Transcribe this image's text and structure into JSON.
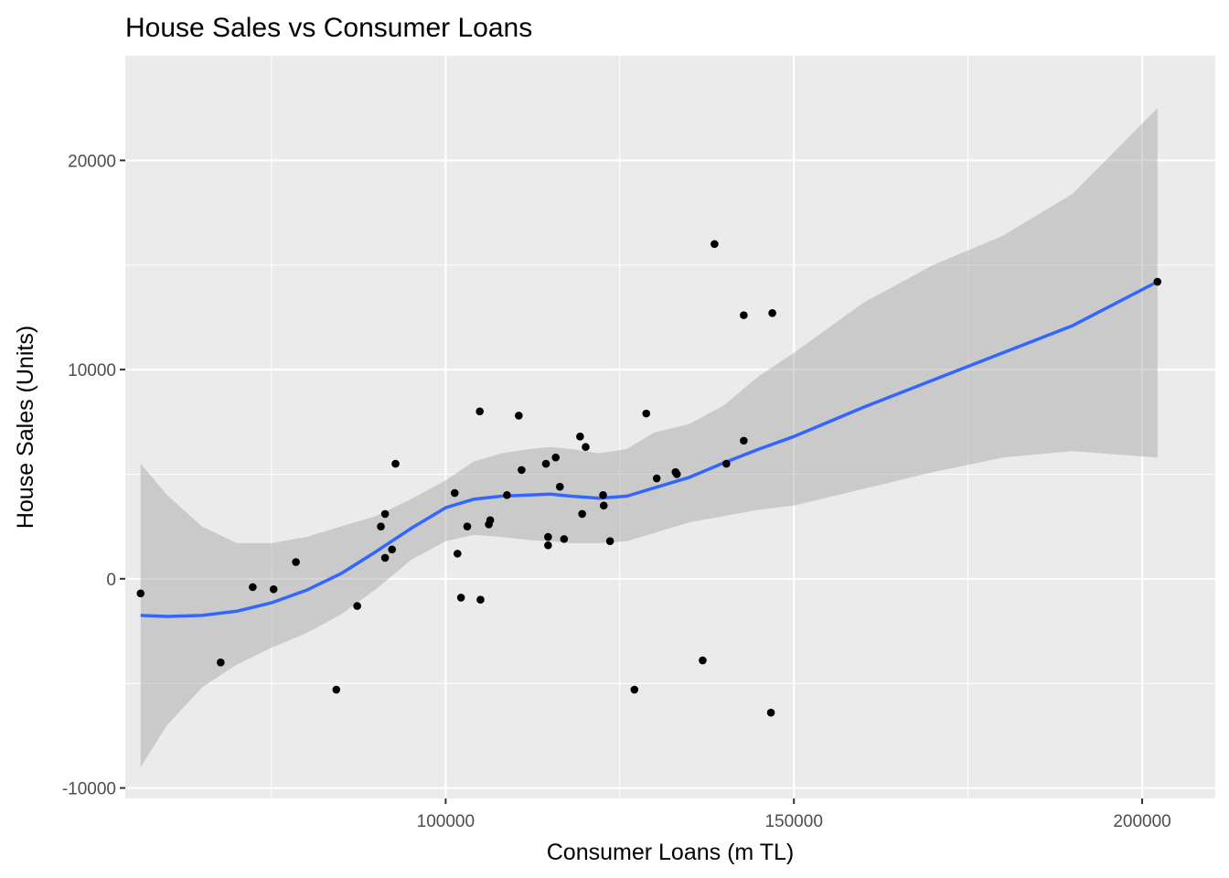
{
  "chart_data": {
    "type": "scatter",
    "title": "House Sales vs Consumer Loans",
    "xlabel": "Consumer Loans (m TL)",
    "ylabel": "House Sales (Units)",
    "xlim": [
      54000,
      210500
    ],
    "ylim": [
      -10500,
      25000
    ],
    "x_ticks": [
      100000,
      150000,
      200000
    ],
    "y_ticks": [
      -10000,
      0,
      10000,
      20000
    ],
    "x_tick_labels": [
      "100000",
      "150000",
      "200000"
    ],
    "y_tick_labels": [
      "-10000",
      "0",
      "10000",
      "20000"
    ],
    "grid": true,
    "legend": "none",
    "colors": {
      "panel": "#ebebeb",
      "grid": "#ffffff",
      "points": "#000000",
      "smooth_line": "#3366ff",
      "ribbon": "#999999"
    },
    "points": [
      {
        "x": 56200,
        "y": -700
      },
      {
        "x": 67700,
        "y": -4000
      },
      {
        "x": 72300,
        "y": -400
      },
      {
        "x": 75300,
        "y": -500
      },
      {
        "x": 78500,
        "y": 800
      },
      {
        "x": 84300,
        "y": -5300
      },
      {
        "x": 87300,
        "y": -1300
      },
      {
        "x": 90700,
        "y": 2500
      },
      {
        "x": 91300,
        "y": 3100
      },
      {
        "x": 91300,
        "y": 1000
      },
      {
        "x": 92300,
        "y": 1400
      },
      {
        "x": 92800,
        "y": 5500
      },
      {
        "x": 101300,
        "y": 4100
      },
      {
        "x": 101700,
        "y": 1200
      },
      {
        "x": 102200,
        "y": -900
      },
      {
        "x": 103100,
        "y": 2500
      },
      {
        "x": 104900,
        "y": 8000
      },
      {
        "x": 105000,
        "y": -1000
      },
      {
        "x": 106200,
        "y": 2600
      },
      {
        "x": 106400,
        "y": 2800
      },
      {
        "x": 108800,
        "y": 4000
      },
      {
        "x": 110500,
        "y": 7800
      },
      {
        "x": 110900,
        "y": 5200
      },
      {
        "x": 114400,
        "y": 5500
      },
      {
        "x": 114700,
        "y": 2000
      },
      {
        "x": 114700,
        "y": 1600
      },
      {
        "x": 115800,
        "y": 5800
      },
      {
        "x": 116400,
        "y": 4400
      },
      {
        "x": 117000,
        "y": 1900
      },
      {
        "x": 119300,
        "y": 6800
      },
      {
        "x": 119600,
        "y": 3100
      },
      {
        "x": 120100,
        "y": 6300
      },
      {
        "x": 122600,
        "y": 4000
      },
      {
        "x": 122700,
        "y": 3500
      },
      {
        "x": 123600,
        "y": 1800
      },
      {
        "x": 127100,
        "y": -5300
      },
      {
        "x": 128800,
        "y": 7900
      },
      {
        "x": 130300,
        "y": 4800
      },
      {
        "x": 133000,
        "y": 5100
      },
      {
        "x": 133200,
        "y": 5000
      },
      {
        "x": 136900,
        "y": -3900
      },
      {
        "x": 138600,
        "y": 16000
      },
      {
        "x": 140300,
        "y": 5500
      },
      {
        "x": 142800,
        "y": 12600
      },
      {
        "x": 142800,
        "y": 6600
      },
      {
        "x": 146700,
        "y": -6400
      },
      {
        "x": 146900,
        "y": 12700
      },
      {
        "x": 202200,
        "y": 14200
      }
    ],
    "smooth_line": {
      "x": [
        56200,
        60000,
        65000,
        70000,
        75000,
        80000,
        85000,
        90000,
        95000,
        100000,
        104000,
        108000,
        112000,
        115000,
        118000,
        122000,
        126000,
        130000,
        135000,
        140000,
        145000,
        150000,
        160000,
        170000,
        180000,
        190000,
        202200
      ],
      "y": [
        -1750,
        -1800,
        -1750,
        -1550,
        -1150,
        -550,
        250,
        1300,
        2400,
        3400,
        3800,
        3950,
        4000,
        4050,
        3950,
        3850,
        3950,
        4350,
        4850,
        5550,
        6200,
        6800,
        8200,
        9500,
        10800,
        12100,
        14200
      ]
    },
    "ribbon": {
      "x": [
        56200,
        60000,
        65000,
        70000,
        75000,
        80000,
        85000,
        90000,
        95000,
        100000,
        104000,
        108000,
        112000,
        115000,
        118000,
        122000,
        126000,
        130000,
        135000,
        140000,
        145000,
        150000,
        160000,
        170000,
        180000,
        190000,
        202200
      ],
      "upper": [
        5500,
        4000,
        2500,
        1700,
        1700,
        2000,
        2500,
        3000,
        3800,
        4700,
        5600,
        6000,
        6200,
        6300,
        6200,
        6000,
        6200,
        7000,
        7400,
        8300,
        9700,
        10800,
        13200,
        15000,
        16400,
        18400,
        22500
      ],
      "lower": [
        -9000,
        -7000,
        -5200,
        -4100,
        -3300,
        -2600,
        -1700,
        -500,
        900,
        1800,
        2100,
        2000,
        1850,
        1800,
        1700,
        1700,
        1800,
        2200,
        2700,
        3000,
        3300,
        3500,
        4300,
        5100,
        5800,
        6100,
        5800
      ]
    }
  }
}
